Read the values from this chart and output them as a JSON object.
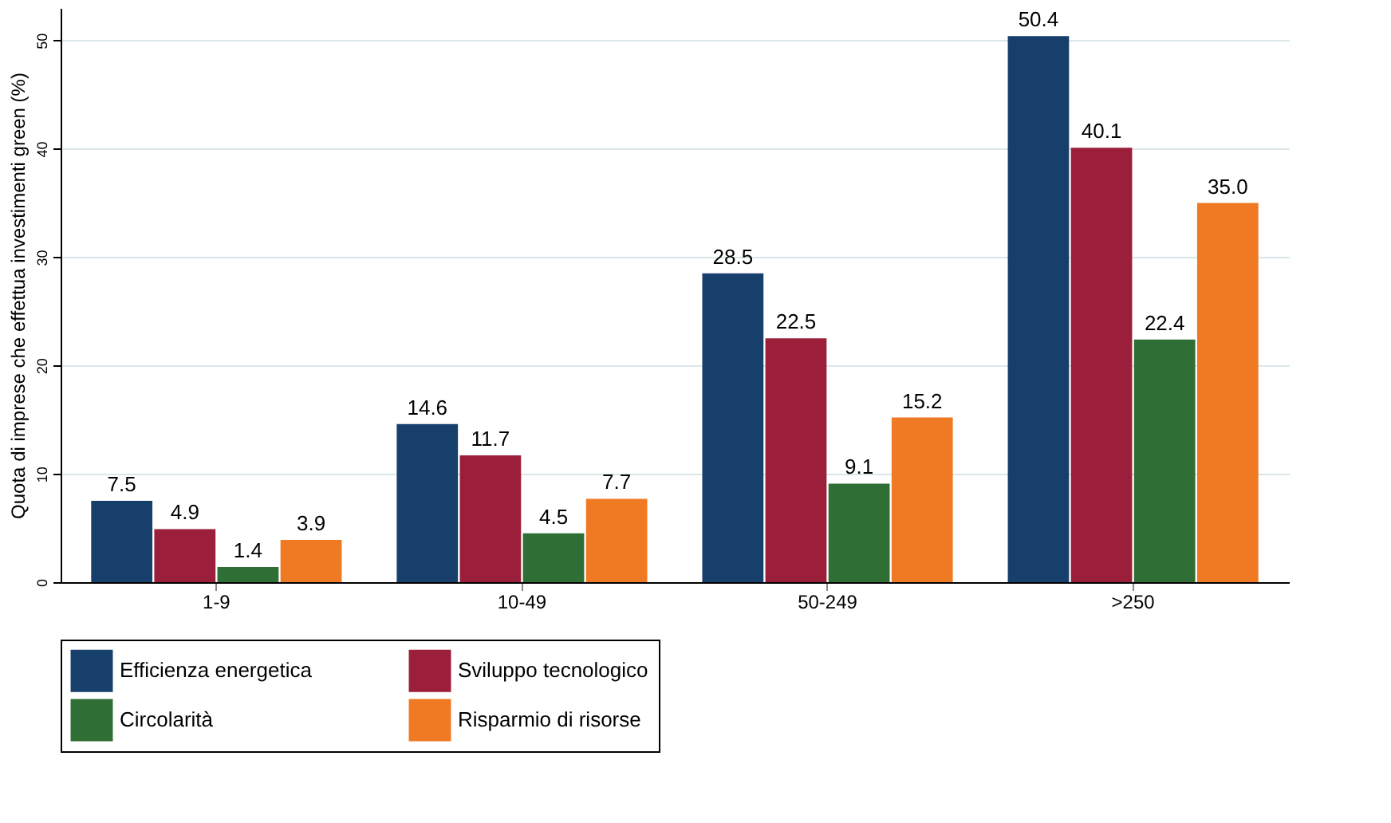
{
  "chart_data": {
    "type": "bar",
    "ylabel": "Quota di imprese che effettua investimenti green (%)",
    "categories": [
      "1-9",
      "10-49",
      "50-249",
      ">250"
    ],
    "series": [
      {
        "name": "Efficienza energetica",
        "color": "#173f6b",
        "values": [
          7.5,
          14.6,
          28.5,
          50.4
        ]
      },
      {
        "name": "Sviluppo tecnologico",
        "color": "#9b1f3b",
        "values": [
          4.9,
          11.7,
          22.5,
          40.1
        ]
      },
      {
        "name": "Circolarità",
        "color": "#2f6e35",
        "values": [
          1.4,
          4.5,
          9.1,
          22.4
        ]
      },
      {
        "name": "Risparmio di risorse",
        "color": "#f07a24",
        "values": [
          3.9,
          7.7,
          15.2,
          35.0
        ]
      }
    ],
    "value_labels": [
      [
        "7.5",
        "14.6",
        "28.5",
        "50.4"
      ],
      [
        "4.9",
        "11.7",
        "22.5",
        "40.1"
      ],
      [
        "1.4",
        "4.5",
        "9.1",
        "22.4"
      ],
      [
        "3.9",
        "7.7",
        "15.2",
        "35.0"
      ]
    ],
    "ylim": [
      0,
      53
    ],
    "yticks": [
      0,
      10,
      20,
      30,
      40,
      50
    ],
    "grid": "y",
    "legend": "bottom"
  }
}
